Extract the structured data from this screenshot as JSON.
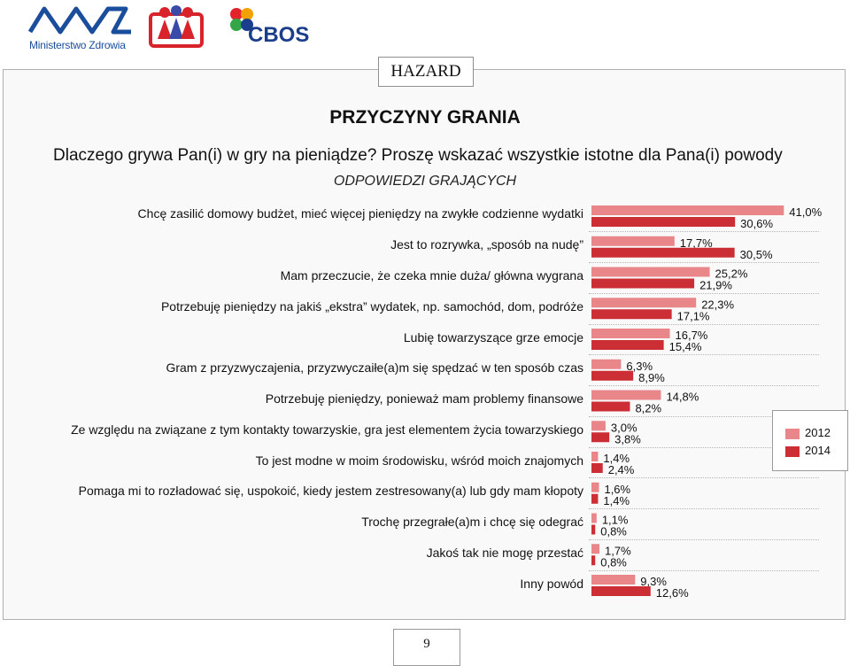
{
  "header": {
    "logo_ministry_text": "Ministerstwo Zdrowia",
    "logo_cbos_text": "CBOS"
  },
  "section_label": "HAZARD",
  "title": "PRZYCZYNY GRANIA",
  "question": "Dlaczego grywa Pan(i) w gry na pieniądze? Proszę wskazać wszystkie istotne dla Pana(i) powody",
  "subtitle": "ODPOWIEDZI GRAJĄCYCH",
  "page_number": "9",
  "colors": {
    "2012": "#e8868a",
    "2014": "#cc2e35"
  },
  "chart_data": {
    "type": "bar",
    "orientation": "horizontal",
    "categories": [
      "Chcę zasilić domowy budżet, mieć więcej pieniędzy na zwykłe codzienne wydatki",
      "Jest to rozrywka, „sposób na nudę”",
      "Mam przeczucie, że czeka mnie duża/ główna wygrana",
      "Potrzebuję pieniędzy na jakiś „ekstra” wydatek, np. samochód, dom, podróże",
      "Lubię towarzyszące grze emocje",
      "Gram z przyzwyczajenia, przyzwyczaiłe(a)m się spędzać w ten sposób czas",
      "Potrzebuję pieniędzy, ponieważ mam problemy finansowe",
      "Ze względu na związane z tym kontakty towarzyskie, gra jest elementem życia towarzyskiego",
      "To jest modne w moim środowisku, wśród moich znajomych",
      "Pomaga mi to rozładować się, uspokoić, kiedy jestem zestresowany(a) lub gdy mam kłopoty",
      "Trochę przegrałe(a)m i chcę się odegrać",
      "Jakoś tak nie mogę przestać",
      "Inny powód"
    ],
    "series": [
      {
        "name": "2012",
        "values": [
          41.0,
          17.7,
          25.2,
          22.3,
          16.7,
          6.3,
          14.8,
          3.0,
          1.4,
          1.6,
          1.1,
          1.7,
          9.3
        ],
        "labels": [
          "41,0%",
          "17,7%",
          "25,2%",
          "22,3%",
          "16,7%",
          "6,3%",
          "14,8%",
          "3,0%",
          "1,4%",
          "1,6%",
          "1,1%",
          "1,7%",
          "9,3%"
        ]
      },
      {
        "name": "2014",
        "values": [
          30.6,
          30.5,
          21.9,
          17.1,
          15.4,
          8.9,
          8.2,
          3.8,
          2.4,
          1.4,
          0.8,
          0.8,
          12.6
        ],
        "labels": [
          "30,6%",
          "30,5%",
          "21,9%",
          "17,1%",
          "15,4%",
          "8,9%",
          "8,2%",
          "3,8%",
          "2,4%",
          "1,4%",
          "0,8%",
          "0,8%",
          "12,6%"
        ]
      }
    ],
    "unit": "%",
    "xlim": [
      0,
      45
    ],
    "legend": {
      "position": "right",
      "entries": [
        "2012",
        "2014"
      ]
    },
    "grid": false
  }
}
